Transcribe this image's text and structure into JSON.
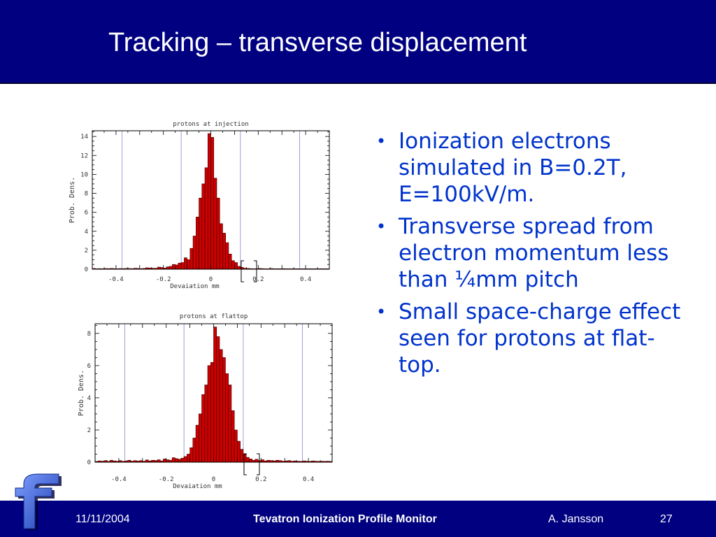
{
  "slide": {
    "title": "Tracking – transverse displacement",
    "bullets": [
      "Ionization electrons simulated in B=0.2T, E=100kV/m.",
      "Transverse spread from electron momentum less than ¼mm pitch",
      "Small space-charge effect seen for protons at flat-top."
    ]
  },
  "footer": {
    "date": "11/11/2004",
    "title": "Tevatron Ionization Profile Monitor",
    "author": "A. Jansson",
    "page": "27"
  },
  "logo": {
    "icon": "fermilab-f-logo",
    "color": "#2a52d1"
  },
  "colors": {
    "bar": "#cc0000",
    "header": "#000080",
    "text": "#0033cc",
    "grid": "#8888cc"
  },
  "chart_data": [
    {
      "type": "bar",
      "title": "protons   at  injection",
      "xlabel": "Devaiation     mm",
      "ylabel": "Prob. Dens.",
      "xlim": [
        -0.5,
        0.5
      ],
      "ylim": [
        0,
        14.6
      ],
      "bin_width": 0.0125,
      "x_ticks": [
        -0.4,
        -0.2,
        0,
        0.2,
        0.4
      ],
      "x_tick_labels": [
        "-0.4",
        "-0.2",
        "0",
        "0.2",
        "0.4"
      ],
      "y_ticks": [
        0,
        2,
        4,
        6,
        8,
        10,
        12,
        14
      ],
      "y_tick_labels": [
        "0",
        "2",
        "4",
        "6",
        "8",
        "10",
        "12",
        "14"
      ],
      "vlines": [
        -0.375,
        -0.125,
        0.125,
        0.375
      ],
      "grid": false,
      "x": [
        -0.5,
        -0.4875,
        -0.475,
        -0.4625,
        -0.45,
        -0.4375,
        -0.425,
        -0.4125,
        -0.4,
        -0.3875,
        -0.375,
        -0.3625,
        -0.35,
        -0.3375,
        -0.325,
        -0.3125,
        -0.3,
        -0.2875,
        -0.275,
        -0.2625,
        -0.25,
        -0.2375,
        -0.225,
        -0.2125,
        -0.2,
        -0.1875,
        -0.175,
        -0.1625,
        -0.15,
        -0.1375,
        -0.125,
        -0.1125,
        -0.1,
        -0.0875,
        -0.075,
        -0.0625,
        -0.05,
        -0.0375,
        -0.025,
        -0.0125,
        0.0,
        0.0125,
        0.025,
        0.0375,
        0.05,
        0.0625,
        0.075,
        0.0875,
        0.1,
        0.1125,
        0.125,
        0.1375,
        0.15,
        0.1625,
        0.175,
        0.1875,
        0.2,
        0.2125,
        0.225,
        0.2375,
        0.25,
        0.2625,
        0.275,
        0.2875,
        0.3,
        0.3125,
        0.325,
        0.3375,
        0.35,
        0.3625,
        0.375,
        0.3875,
        0.4,
        0.4125,
        0.425,
        0.4375,
        0.45,
        0.4625,
        0.475,
        0.4875
      ],
      "values": [
        0.08,
        0.05,
        0.06,
        0.05,
        0.07,
        0.06,
        0.08,
        0.06,
        0.05,
        0.07,
        0.06,
        0.08,
        0.07,
        0.06,
        0.1,
        0.08,
        0.06,
        0.08,
        0.15,
        0.12,
        0.1,
        0.1,
        0.22,
        0.18,
        0.12,
        0.25,
        0.3,
        0.5,
        0.45,
        0.65,
        0.7,
        1.2,
        1.0,
        2.2,
        3.5,
        5.5,
        7.5,
        9.0,
        10.7,
        14.3,
        13.9,
        9.6,
        7.5,
        4.8,
        3.8,
        2.8,
        1.6,
        0.9,
        0.7,
        0.3,
        0.2,
        0.1,
        0.08,
        0.06,
        0.05,
        0.05,
        0.08,
        0.06,
        0.05,
        0.05,
        0.07,
        0.05,
        0.05,
        0.05,
        0.06,
        0.05,
        0.05,
        0.05,
        0.05,
        0.05,
        0.05,
        0.05,
        0.05,
        0.05,
        0.05,
        0.05,
        0.05,
        0.05,
        0.05,
        0.05
      ]
    },
    {
      "type": "bar",
      "title": "protons   at  flattop",
      "xlabel": "Devaiation     mm",
      "ylabel": "Prob. Dens.",
      "xlim": [
        -0.5,
        0.5
      ],
      "ylim": [
        0,
        8.6
      ],
      "bin_width": 0.0125,
      "x_ticks": [
        -0.4,
        -0.2,
        0,
        0.2,
        0.4
      ],
      "x_tick_labels": [
        "-0.4",
        "-0.2",
        "0",
        "0.2",
        "0.4"
      ],
      "y_ticks": [
        0,
        2,
        4,
        6,
        8
      ],
      "y_tick_labels": [
        "0",
        "2",
        "4",
        "6",
        "8"
      ],
      "vlines": [
        -0.375,
        -0.125,
        0.125,
        0.375
      ],
      "grid": false,
      "x": [
        -0.5,
        -0.4875,
        -0.475,
        -0.4625,
        -0.45,
        -0.4375,
        -0.425,
        -0.4125,
        -0.4,
        -0.3875,
        -0.375,
        -0.3625,
        -0.35,
        -0.3375,
        -0.325,
        -0.3125,
        -0.3,
        -0.2875,
        -0.275,
        -0.2625,
        -0.25,
        -0.2375,
        -0.225,
        -0.2125,
        -0.2,
        -0.1875,
        -0.175,
        -0.1625,
        -0.15,
        -0.1375,
        -0.125,
        -0.1125,
        -0.1,
        -0.0875,
        -0.075,
        -0.0625,
        -0.05,
        -0.0375,
        -0.025,
        -0.0125,
        0.0,
        0.0125,
        0.025,
        0.0375,
        0.05,
        0.0625,
        0.075,
        0.0875,
        0.1,
        0.1125,
        0.125,
        0.1375,
        0.15,
        0.1625,
        0.175,
        0.1875,
        0.2,
        0.2125,
        0.225,
        0.2375,
        0.25,
        0.2625,
        0.275,
        0.2875,
        0.3,
        0.3125,
        0.325,
        0.3375,
        0.35,
        0.3625,
        0.375,
        0.3875,
        0.4,
        0.4125,
        0.425,
        0.4375,
        0.45,
        0.4625,
        0.475,
        0.4875
      ],
      "values": [
        0.05,
        0.08,
        0.06,
        0.1,
        0.05,
        0.12,
        0.08,
        0.06,
        0.1,
        0.05,
        0.08,
        0.12,
        0.06,
        0.1,
        0.07,
        0.1,
        0.06,
        0.14,
        0.08,
        0.12,
        0.1,
        0.15,
        0.08,
        0.2,
        0.15,
        0.12,
        0.28,
        0.22,
        0.18,
        0.25,
        0.35,
        0.5,
        0.9,
        1.5,
        2.3,
        3.0,
        4.2,
        4.8,
        6.0,
        6.2,
        8.4,
        7.8,
        7.0,
        6.5,
        5.5,
        4.8,
        3.2,
        2.0,
        1.3,
        0.8,
        0.5,
        0.3,
        0.2,
        0.12,
        0.18,
        0.1,
        0.15,
        0.08,
        0.12,
        0.1,
        0.08,
        0.12,
        0.1,
        0.06,
        0.08,
        0.1,
        0.06,
        0.08,
        0.06,
        0.05,
        0.08,
        0.06,
        0.05,
        0.08,
        0.06,
        0.05,
        0.06,
        0.05,
        0.06,
        0.05
      ]
    }
  ]
}
